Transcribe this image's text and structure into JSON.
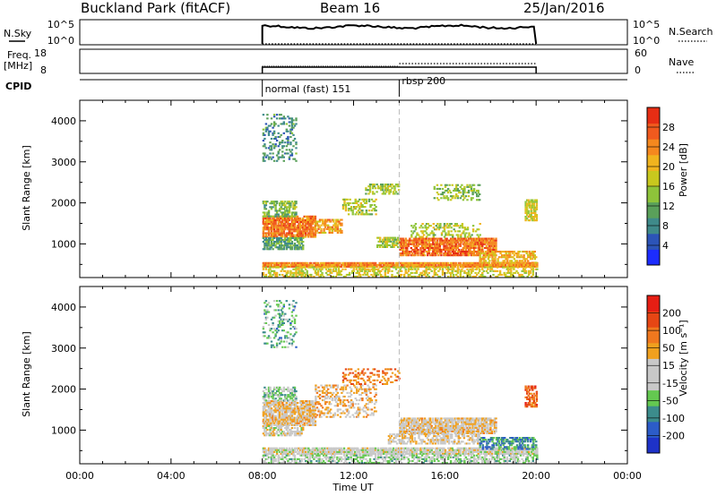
{
  "header": {
    "station": "Buckland Park (fitACF)",
    "beam": "Beam 16",
    "date": "25/Jan/2016"
  },
  "side_labels": {
    "nsky": "N.Sky",
    "freq_line1": "Freq.",
    "freq_line2": "[MHz]",
    "cpid": "CPID",
    "nsearch": "N.Search",
    "nave": "Nave"
  },
  "noise_panel": {
    "left_ticks": [
      "10^5",
      "10^0"
    ],
    "right_ticks": [
      "10^5",
      "10^0"
    ]
  },
  "freq_panel": {
    "left_ticks": [
      "18",
      "8"
    ],
    "right_ticks": [
      "60",
      "0"
    ]
  },
  "cpid_panel": {
    "segments": [
      {
        "label": "normal (fast) 151",
        "start": "08:00",
        "end": "14:00"
      },
      {
        "label": "rbsp 200",
        "start": "14:00",
        "end": "20:00"
      }
    ]
  },
  "axes": {
    "range_label": "Slant Range [km]",
    "time_label": "Time UT",
    "time_ticks": [
      "00:00",
      "04:00",
      "08:00",
      "12:00",
      "16:00",
      "20:00",
      "00:00"
    ],
    "range_ticks": [
      "1000",
      "2000",
      "3000",
      "4000"
    ]
  },
  "power_colorbar": {
    "label": "Power [dB]",
    "ticks": [
      "4",
      "8",
      "12",
      "16",
      "20",
      "24",
      "28"
    ],
    "colors": [
      "#1c2cff",
      "#2c54b8",
      "#3f8a8a",
      "#5aa05a",
      "#8ec43a",
      "#c8c81e",
      "#f0b41e",
      "#f5881e",
      "#f05a1e",
      "#e62d14"
    ]
  },
  "velocity_colorbar": {
    "label": "Velocity [m s⁻¹]",
    "ticks": [
      "200",
      "100",
      "50",
      "15",
      "-15",
      "-50",
      "-100",
      "-200"
    ],
    "colors": [
      "#1e32c8",
      "#2c5cc8",
      "#3c8c8c",
      "#64c850",
      "#c8c8c8",
      "#c8c8c8",
      "#f0a01e",
      "#f0781e",
      "#e64614",
      "#e61e14"
    ]
  },
  "chart_data": [
    {
      "type": "heatmap",
      "title": "",
      "xlabel": "Time UT",
      "ylabel": "Slant Range [km]",
      "xlim": [
        0,
        24
      ],
      "ylim": [
        180,
        4500
      ],
      "colorbar": "Power [dB]",
      "clim": [
        0,
        32
      ],
      "marker_time": 14,
      "regions": [
        {
          "t0": 8.0,
          "t1": 20.0,
          "r0": 420,
          "r1": 520,
          "v": 24,
          "density": 0.95
        },
        {
          "t0": 8.0,
          "t1": 20.0,
          "r0": 180,
          "r1": 420,
          "v": 18,
          "density": 0.45
        },
        {
          "t0": 8.0,
          "t1": 10.3,
          "r0": 1150,
          "r1": 1650,
          "v": 25,
          "density": 0.85
        },
        {
          "t0": 8.0,
          "t1": 9.5,
          "r0": 1650,
          "r1": 2050,
          "v": 13,
          "density": 0.6
        },
        {
          "t0": 8.0,
          "t1": 9.8,
          "r0": 850,
          "r1": 1150,
          "v": 11,
          "density": 0.7
        },
        {
          "t0": 10.3,
          "t1": 11.5,
          "r0": 1250,
          "r1": 1600,
          "v": 22,
          "density": 0.6
        },
        {
          "t0": 11.5,
          "t1": 13.0,
          "r0": 1700,
          "r1": 2100,
          "v": 16,
          "density": 0.45
        },
        {
          "t0": 12.5,
          "t1": 14.0,
          "r0": 2200,
          "r1": 2450,
          "v": 15,
          "density": 0.5
        },
        {
          "t0": 13.0,
          "t1": 14.0,
          "r0": 900,
          "r1": 1150,
          "v": 16,
          "density": 0.6
        },
        {
          "t0": 14.0,
          "t1": 18.2,
          "r0": 700,
          "r1": 1150,
          "v": 26,
          "density": 0.8
        },
        {
          "t0": 14.5,
          "t1": 17.5,
          "r0": 1150,
          "r1": 1500,
          "v": 16,
          "density": 0.35
        },
        {
          "t0": 15.5,
          "t1": 17.5,
          "r0": 2050,
          "r1": 2450,
          "v": 14,
          "density": 0.4
        },
        {
          "t0": 17.5,
          "t1": 20.0,
          "r0": 520,
          "r1": 800,
          "v": 21,
          "density": 0.6
        },
        {
          "t0": 19.5,
          "t1": 20.0,
          "r0": 1550,
          "r1": 2050,
          "v": 18,
          "density": 0.7
        },
        {
          "t0": 8.0,
          "t1": 9.5,
          "r0": 3000,
          "r1": 4150,
          "v": 9,
          "density": 0.25
        }
      ]
    },
    {
      "type": "heatmap",
      "title": "",
      "xlabel": "Time UT",
      "ylabel": "Slant Range [km]",
      "xlim": [
        0,
        24
      ],
      "ylim": [
        180,
        4500
      ],
      "colorbar": "Velocity [m s⁻¹]",
      "clim": [
        -250,
        250
      ],
      "marker_time": 14,
      "regions": [
        {
          "t0": 8.0,
          "t1": 20.0,
          "r0": 400,
          "r1": 540,
          "v": 0,
          "density": 0.85
        },
        {
          "t0": 8.0,
          "t1": 20.0,
          "r0": 180,
          "r1": 400,
          "v": -40,
          "density": 0.5
        },
        {
          "t0": 8.0,
          "t1": 10.3,
          "r0": 1100,
          "r1": 1700,
          "v": 40,
          "density": 0.8
        },
        {
          "t0": 8.0,
          "t1": 9.5,
          "r0": 1700,
          "r1": 2050,
          "v": -60,
          "density": 0.6
        },
        {
          "t0": 8.0,
          "t1": 9.8,
          "r0": 850,
          "r1": 1100,
          "v": 10,
          "density": 0.6
        },
        {
          "t0": 10.3,
          "t1": 13.0,
          "r0": 1300,
          "r1": 2100,
          "v": 60,
          "density": 0.35
        },
        {
          "t0": 11.5,
          "t1": 14.0,
          "r0": 2100,
          "r1": 2500,
          "v": 120,
          "density": 0.3
        },
        {
          "t0": 14.0,
          "t1": 18.2,
          "r0": 900,
          "r1": 1300,
          "v": 35,
          "density": 0.8
        },
        {
          "t0": 13.5,
          "t1": 17.5,
          "r0": 650,
          "r1": 900,
          "v": 25,
          "density": 0.5
        },
        {
          "t0": 17.5,
          "t1": 20.0,
          "r0": 520,
          "r1": 800,
          "v": -120,
          "density": 0.55
        },
        {
          "t0": 19.5,
          "t1": 20.0,
          "r0": 1550,
          "r1": 2050,
          "v": 150,
          "density": 0.6
        },
        {
          "t0": 8.0,
          "t1": 9.5,
          "r0": 3000,
          "r1": 4150,
          "v": -90,
          "density": 0.25
        }
      ]
    }
  ]
}
